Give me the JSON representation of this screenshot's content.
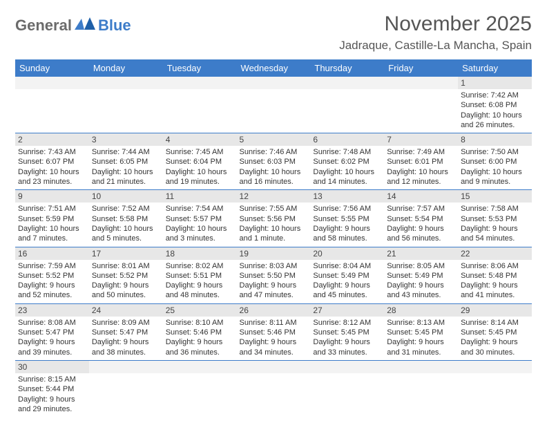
{
  "logo": {
    "text1": "General",
    "text2": "Blue"
  },
  "title": "November 2025",
  "location": "Jadraque, Castille-La Mancha, Spain",
  "colors": {
    "header_bg": "#3d7cc9",
    "header_text": "#ffffff",
    "daynum_bg": "#e7e7e7",
    "daynum_bg_empty": "#f3f3f3",
    "border": "#3d7cc9",
    "logo_gray": "#6b6b6b",
    "logo_blue": "#3d7cc9"
  },
  "weekdays": [
    "Sunday",
    "Monday",
    "Tuesday",
    "Wednesday",
    "Thursday",
    "Friday",
    "Saturday"
  ],
  "weeks": [
    [
      null,
      null,
      null,
      null,
      null,
      null,
      {
        "n": "1",
        "sr": "7:42 AM",
        "ss": "6:08 PM",
        "dl": "10 hours and 26 minutes."
      }
    ],
    [
      {
        "n": "2",
        "sr": "7:43 AM",
        "ss": "6:07 PM",
        "dl": "10 hours and 23 minutes."
      },
      {
        "n": "3",
        "sr": "7:44 AM",
        "ss": "6:05 PM",
        "dl": "10 hours and 21 minutes."
      },
      {
        "n": "4",
        "sr": "7:45 AM",
        "ss": "6:04 PM",
        "dl": "10 hours and 19 minutes."
      },
      {
        "n": "5",
        "sr": "7:46 AM",
        "ss": "6:03 PM",
        "dl": "10 hours and 16 minutes."
      },
      {
        "n": "6",
        "sr": "7:48 AM",
        "ss": "6:02 PM",
        "dl": "10 hours and 14 minutes."
      },
      {
        "n": "7",
        "sr": "7:49 AM",
        "ss": "6:01 PM",
        "dl": "10 hours and 12 minutes."
      },
      {
        "n": "8",
        "sr": "7:50 AM",
        "ss": "6:00 PM",
        "dl": "10 hours and 9 minutes."
      }
    ],
    [
      {
        "n": "9",
        "sr": "7:51 AM",
        "ss": "5:59 PM",
        "dl": "10 hours and 7 minutes."
      },
      {
        "n": "10",
        "sr": "7:52 AM",
        "ss": "5:58 PM",
        "dl": "10 hours and 5 minutes."
      },
      {
        "n": "11",
        "sr": "7:54 AM",
        "ss": "5:57 PM",
        "dl": "10 hours and 3 minutes."
      },
      {
        "n": "12",
        "sr": "7:55 AM",
        "ss": "5:56 PM",
        "dl": "10 hours and 1 minute."
      },
      {
        "n": "13",
        "sr": "7:56 AM",
        "ss": "5:55 PM",
        "dl": "9 hours and 58 minutes."
      },
      {
        "n": "14",
        "sr": "7:57 AM",
        "ss": "5:54 PM",
        "dl": "9 hours and 56 minutes."
      },
      {
        "n": "15",
        "sr": "7:58 AM",
        "ss": "5:53 PM",
        "dl": "9 hours and 54 minutes."
      }
    ],
    [
      {
        "n": "16",
        "sr": "7:59 AM",
        "ss": "5:52 PM",
        "dl": "9 hours and 52 minutes."
      },
      {
        "n": "17",
        "sr": "8:01 AM",
        "ss": "5:52 PM",
        "dl": "9 hours and 50 minutes."
      },
      {
        "n": "18",
        "sr": "8:02 AM",
        "ss": "5:51 PM",
        "dl": "9 hours and 48 minutes."
      },
      {
        "n": "19",
        "sr": "8:03 AM",
        "ss": "5:50 PM",
        "dl": "9 hours and 47 minutes."
      },
      {
        "n": "20",
        "sr": "8:04 AM",
        "ss": "5:49 PM",
        "dl": "9 hours and 45 minutes."
      },
      {
        "n": "21",
        "sr": "8:05 AM",
        "ss": "5:49 PM",
        "dl": "9 hours and 43 minutes."
      },
      {
        "n": "22",
        "sr": "8:06 AM",
        "ss": "5:48 PM",
        "dl": "9 hours and 41 minutes."
      }
    ],
    [
      {
        "n": "23",
        "sr": "8:08 AM",
        "ss": "5:47 PM",
        "dl": "9 hours and 39 minutes."
      },
      {
        "n": "24",
        "sr": "8:09 AM",
        "ss": "5:47 PM",
        "dl": "9 hours and 38 minutes."
      },
      {
        "n": "25",
        "sr": "8:10 AM",
        "ss": "5:46 PM",
        "dl": "9 hours and 36 minutes."
      },
      {
        "n": "26",
        "sr": "8:11 AM",
        "ss": "5:46 PM",
        "dl": "9 hours and 34 minutes."
      },
      {
        "n": "27",
        "sr": "8:12 AM",
        "ss": "5:45 PM",
        "dl": "9 hours and 33 minutes."
      },
      {
        "n": "28",
        "sr": "8:13 AM",
        "ss": "5:45 PM",
        "dl": "9 hours and 31 minutes."
      },
      {
        "n": "29",
        "sr": "8:14 AM",
        "ss": "5:45 PM",
        "dl": "9 hours and 30 minutes."
      }
    ],
    [
      {
        "n": "30",
        "sr": "8:15 AM",
        "ss": "5:44 PM",
        "dl": "9 hours and 29 minutes."
      },
      null,
      null,
      null,
      null,
      null,
      null
    ]
  ],
  "labels": {
    "sunrise": "Sunrise:",
    "sunset": "Sunset:",
    "daylight": "Daylight:"
  }
}
